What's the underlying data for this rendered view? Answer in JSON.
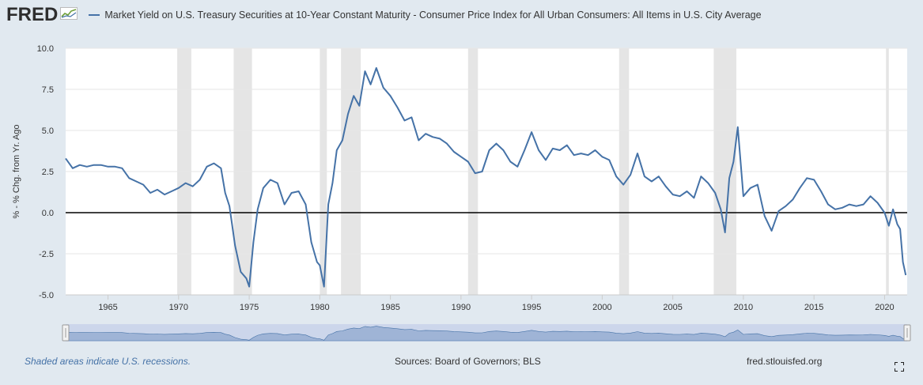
{
  "header": {
    "logo_text": "FRED",
    "series_title": "Market Yield on U.S. Treasury Securities at 10-Year Constant Maturity - Consumer Price Index for All Urban Consumers: All Items in U.S. City Average"
  },
  "footer": {
    "note": "Shaded areas indicate U.S. recessions.",
    "sources": "Sources: Board of Governors; BLS",
    "site": "fred.stlouisfed.org"
  },
  "icons": {
    "logo": "line-chart-icon",
    "fullscreen": "fullscreen-icon"
  },
  "colors": {
    "series": "#4572a7",
    "recession": "#e5e5e5",
    "zero_line": "#000000",
    "background": "#e1e9f0"
  },
  "chart_data": {
    "type": "line",
    "title": "",
    "xlabel": "",
    "ylabel": "% - % Chg. from Yr. Ago",
    "ylim": [
      -5.0,
      10.0
    ],
    "xlim": [
      1962.0,
      2021.6
    ],
    "yticks": [
      "10.0",
      "7.5",
      "5.0",
      "2.5",
      "0.0",
      "-2.5",
      "-5.0"
    ],
    "xticks": [
      "1965",
      "1970",
      "1975",
      "1980",
      "1985",
      "1990",
      "1995",
      "2000",
      "2005",
      "2010",
      "2015",
      "2020"
    ],
    "grid": "horizontal",
    "recessions": [
      [
        1969.9,
        1970.9
      ],
      [
        1973.9,
        1975.2
      ],
      [
        1980.0,
        1980.5
      ],
      [
        1981.5,
        1982.9
      ],
      [
        1990.5,
        1991.2
      ],
      [
        2001.2,
        2001.9
      ],
      [
        2007.9,
        2009.5
      ],
      [
        2020.1,
        2020.3
      ]
    ],
    "series": [
      {
        "name": "",
        "x": [
          1962.0,
          1962.5,
          1963.0,
          1963.5,
          1964.0,
          1964.5,
          1965.0,
          1965.5,
          1966.0,
          1966.5,
          1967.0,
          1967.5,
          1968.0,
          1968.5,
          1969.0,
          1969.5,
          1970.0,
          1970.5,
          1971.0,
          1971.5,
          1972.0,
          1972.5,
          1973.0,
          1973.3,
          1973.6,
          1974.0,
          1974.4,
          1974.8,
          1975.0,
          1975.3,
          1975.6,
          1976.0,
          1976.5,
          1977.0,
          1977.5,
          1978.0,
          1978.5,
          1979.0,
          1979.4,
          1979.8,
          1980.0,
          1980.3,
          1980.6,
          1980.9,
          1981.2,
          1981.6,
          1982.0,
          1982.4,
          1982.8,
          1983.2,
          1983.6,
          1984.0,
          1984.5,
          1985.0,
          1985.5,
          1986.0,
          1986.5,
          1987.0,
          1987.5,
          1988.0,
          1988.5,
          1989.0,
          1989.5,
          1990.0,
          1990.5,
          1991.0,
          1991.5,
          1992.0,
          1992.5,
          1993.0,
          1993.5,
          1994.0,
          1994.5,
          1995.0,
          1995.5,
          1996.0,
          1996.5,
          1997.0,
          1997.5,
          1998.0,
          1998.5,
          1999.0,
          1999.5,
          2000.0,
          2000.5,
          2001.0,
          2001.5,
          2002.0,
          2002.5,
          2003.0,
          2003.5,
          2004.0,
          2004.5,
          2005.0,
          2005.5,
          2006.0,
          2006.5,
          2007.0,
          2007.5,
          2008.0,
          2008.4,
          2008.7,
          2009.0,
          2009.3,
          2009.6,
          2010.0,
          2010.5,
          2011.0,
          2011.5,
          2012.0,
          2012.5,
          2013.0,
          2013.5,
          2014.0,
          2014.5,
          2015.0,
          2015.5,
          2016.0,
          2016.5,
          2017.0,
          2017.5,
          2018.0,
          2018.5,
          2019.0,
          2019.5,
          2020.0,
          2020.3,
          2020.6,
          2020.9,
          2021.1,
          2021.3,
          2021.5
        ],
        "values": [
          3.3,
          2.7,
          2.9,
          2.8,
          2.9,
          2.9,
          2.8,
          2.8,
          2.7,
          2.1,
          1.9,
          1.7,
          1.2,
          1.4,
          1.1,
          1.3,
          1.5,
          1.8,
          1.6,
          2.0,
          2.8,
          3.0,
          2.7,
          1.2,
          0.4,
          -2.0,
          -3.6,
          -4.0,
          -4.5,
          -1.8,
          0.2,
          1.5,
          2.0,
          1.8,
          0.5,
          1.2,
          1.3,
          0.5,
          -1.8,
          -3.0,
          -3.2,
          -4.5,
          0.5,
          1.8,
          3.8,
          4.4,
          6.0,
          7.1,
          6.5,
          8.6,
          7.8,
          8.8,
          7.6,
          7.1,
          6.4,
          5.6,
          5.8,
          4.4,
          4.8,
          4.6,
          4.5,
          4.2,
          3.7,
          3.4,
          3.1,
          2.4,
          2.5,
          3.8,
          4.2,
          3.8,
          3.1,
          2.8,
          3.8,
          4.9,
          3.8,
          3.2,
          3.9,
          3.8,
          4.1,
          3.5,
          3.6,
          3.5,
          3.8,
          3.4,
          3.2,
          2.2,
          1.7,
          2.3,
          3.6,
          2.2,
          1.9,
          2.2,
          1.6,
          1.1,
          1.0,
          1.3,
          0.9,
          2.2,
          1.8,
          1.2,
          0.2,
          -1.2,
          2.1,
          3.1,
          5.2,
          1.0,
          1.5,
          1.7,
          -0.2,
          -1.1,
          0.1,
          0.4,
          0.8,
          1.5,
          2.1,
          2.0,
          1.3,
          0.5,
          0.2,
          0.3,
          0.5,
          0.4,
          0.5,
          1.0,
          0.6,
          0.0,
          -0.8,
          0.2,
          -0.7,
          -1.0,
          -3.0,
          -3.8
        ]
      }
    ]
  }
}
